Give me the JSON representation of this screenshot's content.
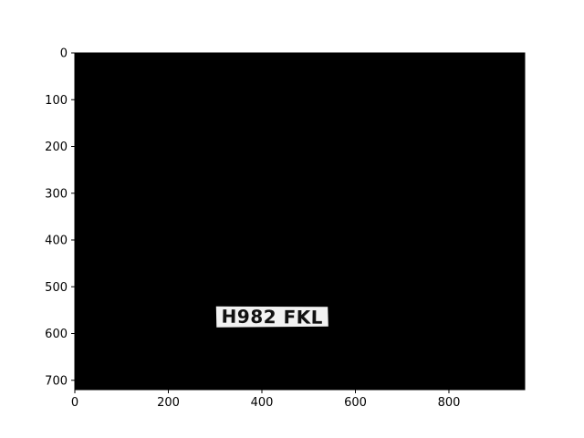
{
  "image_display": {
    "background_color": "#000000",
    "frame_color": "#000000",
    "x_range": [
      0,
      962
    ],
    "y_range": [
      720,
      0
    ],
    "x_ticks": [
      {
        "value": 0,
        "label": "0"
      },
      {
        "value": 200,
        "label": "200"
      },
      {
        "value": 400,
        "label": "400"
      },
      {
        "value": 600,
        "label": "600"
      },
      {
        "value": 800,
        "label": "800"
      }
    ],
    "y_ticks": [
      {
        "value": 0,
        "label": "0"
      },
      {
        "value": 100,
        "label": "100"
      },
      {
        "value": 200,
        "label": "200"
      },
      {
        "value": 300,
        "label": "300"
      },
      {
        "value": 400,
        "label": "400"
      },
      {
        "value": 500,
        "label": "500"
      },
      {
        "value": 600,
        "label": "600"
      },
      {
        "value": 700,
        "label": "700"
      }
    ]
  },
  "license_plate": {
    "text": "H982 FKL",
    "plate_color": "#f2f2f2",
    "text_color": "#111111",
    "corners": [
      [
        302,
        542
      ],
      [
        541,
        543
      ],
      [
        542,
        585
      ],
      [
        303,
        587
      ]
    ]
  }
}
